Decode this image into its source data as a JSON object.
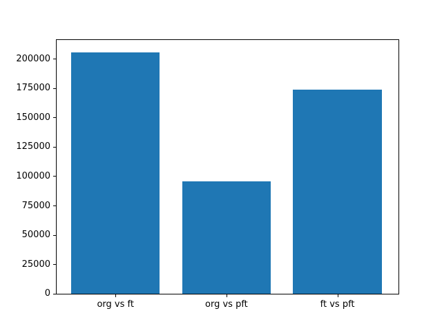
{
  "chart_data": {
    "type": "bar",
    "title": "",
    "xlabel": "",
    "ylabel": "",
    "categories": [
      "org vs ft",
      "org vs pft",
      "ft vs pft"
    ],
    "values": [
      206000,
      96000,
      174000
    ],
    "yticks": [
      0,
      25000,
      50000,
      75000,
      100000,
      125000,
      150000,
      175000,
      200000
    ],
    "ytick_labels": [
      "0",
      "25000",
      "50000",
      "75000",
      "100000",
      "125000",
      "150000",
      "175000",
      "200000"
    ],
    "ylim": [
      0,
      216400
    ],
    "grid": false,
    "legend_position": "none",
    "bar_color": "#1f77b4",
    "axis_color": "#000000",
    "text_color": "#000000",
    "background_color": "#ffffff"
  }
}
